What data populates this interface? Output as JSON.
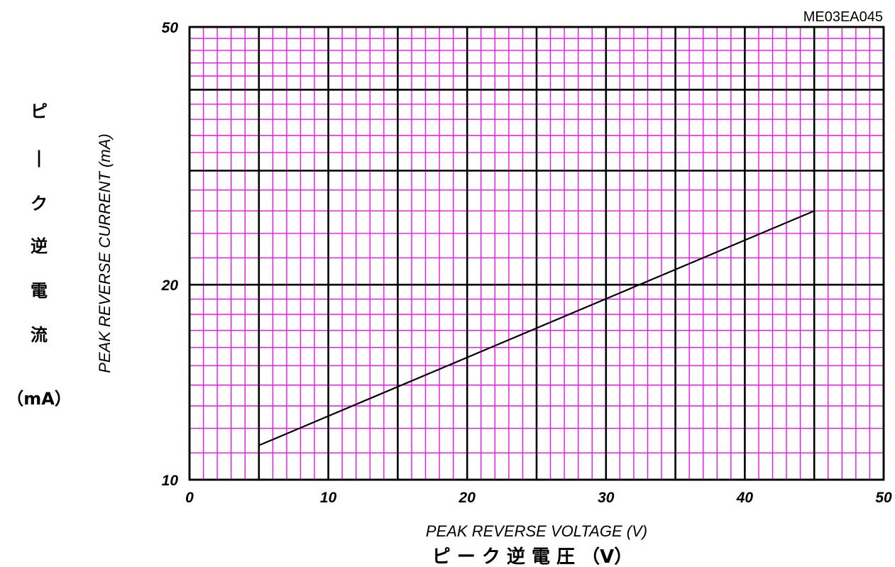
{
  "figure_id": "ME03EA045",
  "colors": {
    "minor_grid": "#ee11ee",
    "major_grid": "#000000",
    "curve": "#000000",
    "background": "#ffffff"
  },
  "labels": {
    "xlabel_en": "PEAK REVERSE VOLTAGE (V)",
    "xlabel_jp": "ピ ー ク 逆 電 圧 （V）",
    "ylabel_en": "PEAK REVERSE CURRENT (mA)",
    "ylabel_jp_chars": [
      "ピ",
      "|",
      "ク",
      "逆",
      "電",
      "流"
    ],
    "ylabel_jp_unit": "（mA）"
  },
  "chart_data": {
    "type": "line",
    "title": "",
    "xlabel": "PEAK REVERSE VOLTAGE (V)",
    "ylabel": "PEAK REVERSE CURRENT (mA)",
    "xlim": [
      0,
      50
    ],
    "ylim": [
      10,
      50
    ],
    "xscale": "linear",
    "yscale": "log",
    "grid": true,
    "legend": "none",
    "x_ticks": [
      0,
      10,
      20,
      30,
      40,
      50
    ],
    "y_ticks": [
      10,
      20,
      50
    ],
    "x_major_grid": [
      0,
      5,
      10,
      15,
      20,
      25,
      30,
      35,
      40,
      45,
      50
    ],
    "y_major_grid": [
      10,
      20,
      30,
      40,
      50
    ],
    "x_minor_step": 1,
    "y_minor_grid": [
      11,
      12,
      13,
      14,
      15,
      16,
      17,
      18,
      19,
      22,
      24,
      26,
      28,
      32,
      34,
      36,
      38,
      42,
      44,
      46,
      48
    ],
    "series": [
      {
        "x": [
          5,
          45
        ],
        "y": [
          11.3,
          26.0
        ]
      }
    ]
  }
}
